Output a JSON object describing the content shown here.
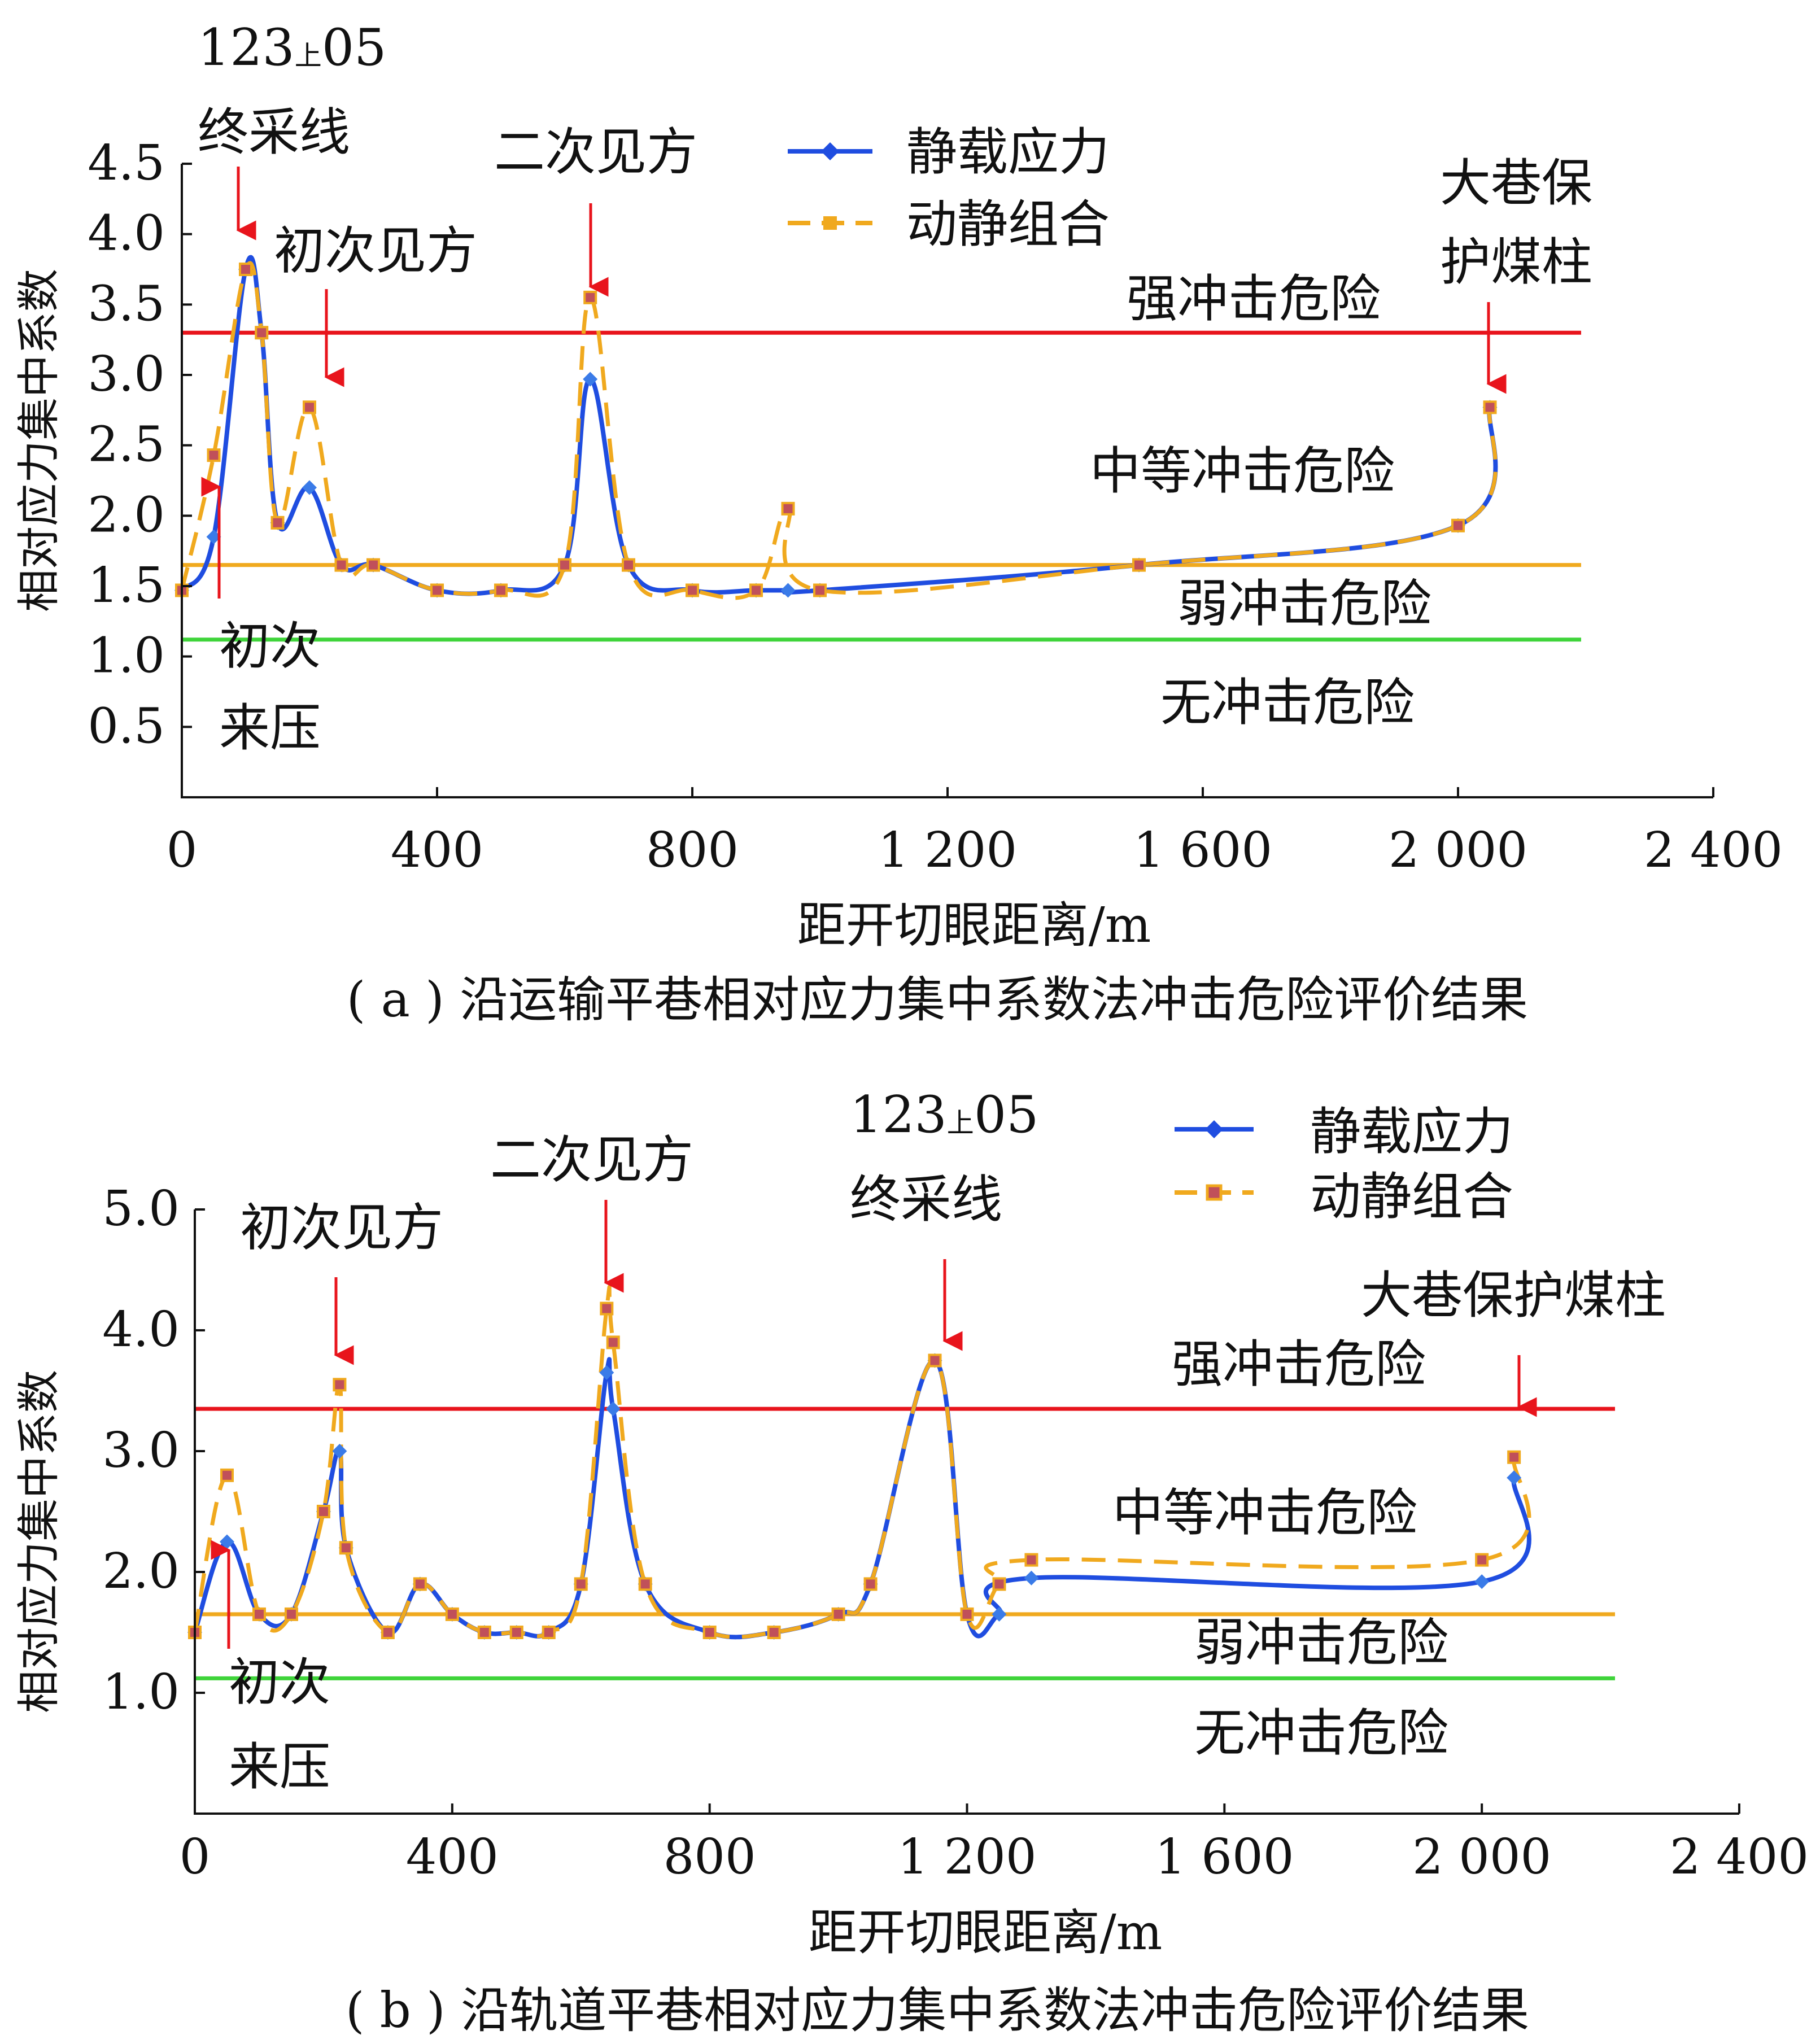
{
  "chart_data": [
    {
      "type": "line",
      "caption": "( a ) 沿运输平巷相对应力集中系数法冲击危险评价结果",
      "xlabel": "距开切眼距离/m",
      "ylabel": "相对应力集中系数",
      "xlim": [
        0,
        2400
      ],
      "ylim": [
        0,
        4.5
      ],
      "x_ticks": [
        0,
        400,
        800,
        1200,
        1600,
        2000,
        2400
      ],
      "x_tick_labels": [
        "0",
        "400",
        "800",
        "1 200",
        "1 600",
        "2 000",
        "2 400"
      ],
      "y_ticks": [
        0.5,
        1.0,
        1.5,
        2.0,
        2.5,
        3.0,
        3.5,
        4.0,
        4.5
      ],
      "y_tick_labels": [
        "0.5",
        "1.0",
        "1.5",
        "2.0",
        "2.5",
        "3.0",
        "3.5",
        "4.0",
        "4.5"
      ],
      "grid": false,
      "legend": "top-center",
      "thresholds": [
        {
          "value": 3.3,
          "color": "#e8141c"
        },
        {
          "value": 1.65,
          "color": "#f0a91e"
        },
        {
          "value": 1.12,
          "color": "#3fd43a"
        }
      ],
      "zone_labels": [
        "强冲击危险",
        "中等冲击危险",
        "弱冲击危险",
        "无冲击危险"
      ],
      "series": [
        {
          "name": "静载应力",
          "color": "#1f4de0",
          "x": [
            0,
            50,
            100,
            125,
            150,
            200,
            250,
            300,
            400,
            500,
            600,
            640,
            700,
            800,
            900,
            950,
            1000,
            1500,
            2000,
            2050
          ],
          "y": [
            1.47,
            1.85,
            3.75,
            3.3,
            1.95,
            2.2,
            1.65,
            1.65,
            1.47,
            1.47,
            1.65,
            2.97,
            1.65,
            1.47,
            1.47,
            1.47,
            1.47,
            1.65,
            1.93,
            2.77
          ]
        },
        {
          "name": "动静组合",
          "color": "#f0a91e",
          "x": [
            0,
            50,
            100,
            125,
            150,
            200,
            250,
            300,
            400,
            500,
            600,
            640,
            700,
            800,
            900,
            950,
            1000,
            1500,
            2000,
            2050
          ],
          "y": [
            1.47,
            2.43,
            3.75,
            3.3,
            1.95,
            2.77,
            1.65,
            1.65,
            1.47,
            1.47,
            1.65,
            3.55,
            1.65,
            1.47,
            1.47,
            2.05,
            1.47,
            1.65,
            1.93,
            2.77
          ]
        }
      ],
      "annotations": [
        {
          "text": [
            "123",
            "上",
            "05"
          ],
          "text2": "终采线",
          "x": 100
        },
        {
          "text": "初次见方",
          "x": 225
        },
        {
          "text": "二次见方",
          "x": 640
        },
        {
          "text": "大巷保",
          "text2": "护煤柱",
          "x": 2050
        },
        {
          "text": "初次",
          "text2": "来压",
          "x": 50
        }
      ]
    },
    {
      "type": "line",
      "caption": "( b ) 沿轨道平巷相对应力集中系数法冲击危险评价结果",
      "xlabel": "距开切眼距离/m",
      "ylabel": "相对应力集中系数",
      "xlim": [
        0,
        2400
      ],
      "ylim": [
        0,
        5.0
      ],
      "x_ticks": [
        0,
        400,
        800,
        1200,
        1600,
        2000,
        2400
      ],
      "x_tick_labels": [
        "0",
        "400",
        "800",
        "1 200",
        "1 600",
        "2 000",
        "2 400"
      ],
      "y_ticks": [
        1.0,
        2.0,
        3.0,
        4.0,
        5.0
      ],
      "y_tick_labels": [
        "1.0",
        "2.0",
        "3.0",
        "4.0",
        "5.0"
      ],
      "grid": false,
      "legend": "top-right",
      "thresholds": [
        {
          "value": 3.35,
          "color": "#e8141c"
        },
        {
          "value": 1.65,
          "color": "#f0a91e"
        },
        {
          "value": 1.12,
          "color": "#3fd43a"
        }
      ],
      "zone_labels": [
        "强冲击危险",
        "中等冲击危险",
        "弱冲击危险",
        "无冲击危险"
      ],
      "series": [
        {
          "name": "静载应力",
          "color": "#1f4de0",
          "x": [
            0,
            50,
            100,
            150,
            200,
            225,
            235,
            300,
            350,
            400,
            450,
            500,
            550,
            600,
            640,
            650,
            700,
            800,
            900,
            1000,
            1050,
            1150,
            1200,
            1250,
            1300,
            2000,
            2050
          ],
          "y": [
            1.5,
            2.25,
            1.65,
            1.65,
            2.5,
            3.0,
            2.2,
            1.5,
            1.9,
            1.65,
            1.5,
            1.5,
            1.5,
            1.9,
            3.65,
            3.35,
            1.9,
            1.5,
            1.5,
            1.65,
            1.9,
            3.75,
            1.65,
            1.65,
            1.95,
            1.92,
            2.78
          ]
        },
        {
          "name": "动静组合",
          "color": "#f0a91e",
          "x": [
            0,
            50,
            100,
            150,
            200,
            225,
            235,
            300,
            350,
            400,
            450,
            500,
            550,
            600,
            640,
            650,
            700,
            800,
            900,
            1000,
            1050,
            1150,
            1200,
            1250,
            1300,
            2000,
            2050
          ],
          "y": [
            1.5,
            2.8,
            1.65,
            1.65,
            2.5,
            3.55,
            2.2,
            1.5,
            1.9,
            1.65,
            1.5,
            1.5,
            1.5,
            1.9,
            4.18,
            3.9,
            1.9,
            1.5,
            1.5,
            1.65,
            1.9,
            3.75,
            1.65,
            1.9,
            2.1,
            2.1,
            2.95
          ]
        }
      ],
      "annotations": [
        {
          "text": "初次见方",
          "x": 225
        },
        {
          "text": "二次见方",
          "x": 640
        },
        {
          "text": [
            "123",
            "上",
            "05"
          ],
          "text2": "终采线",
          "x": 1150
        },
        {
          "text": "大巷保护煤柱",
          "x": 2050
        },
        {
          "text": "初次",
          "text2": "来压",
          "x": 50
        }
      ]
    }
  ]
}
